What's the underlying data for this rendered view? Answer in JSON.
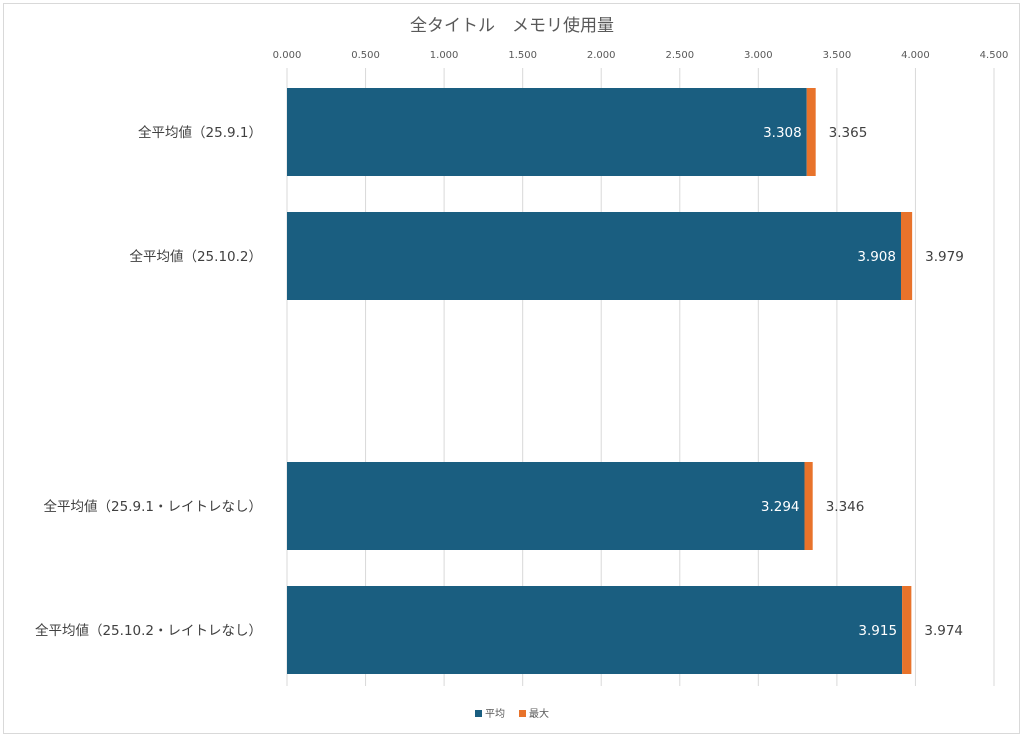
{
  "chart_data": {
    "type": "bar",
    "orientation": "horizontal",
    "stacked": true,
    "title": "全タイトル　メモリ使用量",
    "xlim": [
      0,
      4.5
    ],
    "x_ticks": [
      "0.000",
      "0.500",
      "1.000",
      "1.500",
      "2.000",
      "2.500",
      "3.000",
      "3.500",
      "4.000",
      "4.500"
    ],
    "x_tick_values": [
      0,
      0.5,
      1,
      1.5,
      2,
      2.5,
      3,
      3.5,
      4,
      4.5
    ],
    "x_axis_position": "top",
    "grid": true,
    "legend_position": "bottom",
    "categories": [
      "全平均値（25.9.1）",
      "全平均値（25.10.2）",
      "",
      "全平均値（25.9.1・レイトレなし）",
      "全平均値（25.10.2・レイトレなし）"
    ],
    "series": [
      {
        "name": "平均",
        "color": "#1a5e80",
        "values": [
          3.308,
          3.908,
          null,
          3.294,
          3.915
        ],
        "labels": [
          "3.308",
          "3.908",
          "",
          "3.294",
          "3.915"
        ]
      },
      {
        "name": "最大",
        "color": "#e8732b",
        "values": [
          0.057,
          0.071,
          null,
          0.052,
          0.059
        ],
        "labels": [
          "3.365",
          "3.979",
          "",
          "3.346",
          "3.974"
        ]
      }
    ]
  }
}
